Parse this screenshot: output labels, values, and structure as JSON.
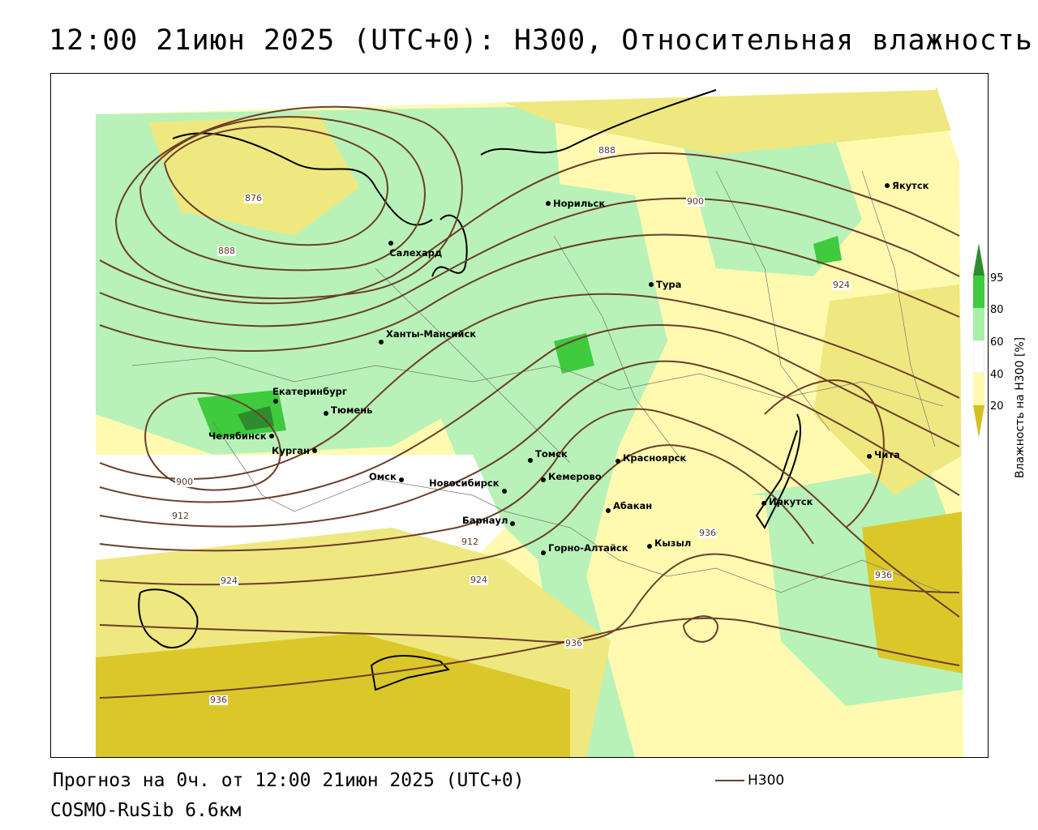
{
  "title": "12:00 21июн 2025 (UTC+0): H300, Относительная влажность",
  "colorbar": {
    "label": "Влажность на H300 [%]",
    "ticks": [
      "95",
      "80",
      "60",
      "40",
      "20"
    ],
    "colors": [
      "#2e8b2e",
      "#3ecb3e",
      "#a8f0a8",
      "#ffffff",
      "#fffab0",
      "#e8e070",
      "#d4c020"
    ]
  },
  "cities": [
    {
      "name": "Норильск"
    },
    {
      "name": "Якутск"
    },
    {
      "name": "Салехард"
    },
    {
      "name": "Тура"
    },
    {
      "name": "Ханты-Мансийск"
    },
    {
      "name": "Екатеринбург"
    },
    {
      "name": "Тюмень"
    },
    {
      "name": "Челябинск"
    },
    {
      "name": "Курган"
    },
    {
      "name": "Омск"
    },
    {
      "name": "Новосибирск"
    },
    {
      "name": "Томск"
    },
    {
      "name": "Кемерово"
    },
    {
      "name": "Красноярск"
    },
    {
      "name": "Абакан"
    },
    {
      "name": "Барнаул"
    },
    {
      "name": "Горно-Алтайск"
    },
    {
      "name": "Кызыл"
    },
    {
      "name": "Иркутск"
    },
    {
      "name": "Чита"
    }
  ],
  "isolines": [
    {
      "label": "888"
    },
    {
      "label": "876"
    },
    {
      "label": "888"
    },
    {
      "label": "900"
    },
    {
      "label": "924"
    },
    {
      "label": "900"
    },
    {
      "label": "912"
    },
    {
      "label": "912"
    },
    {
      "label": "924"
    },
    {
      "label": "924"
    },
    {
      "label": "936"
    },
    {
      "label": "936"
    },
    {
      "label": "936"
    },
    {
      "label": "936"
    }
  ],
  "legend": {
    "series": "H300",
    "color": "#6b3f2a"
  },
  "footer": {
    "forecast": "Прогноз на 0ч. от 12:00 21июн 2025 (UTC+0)",
    "model": "COSMO-RuSib 6.6км"
  }
}
